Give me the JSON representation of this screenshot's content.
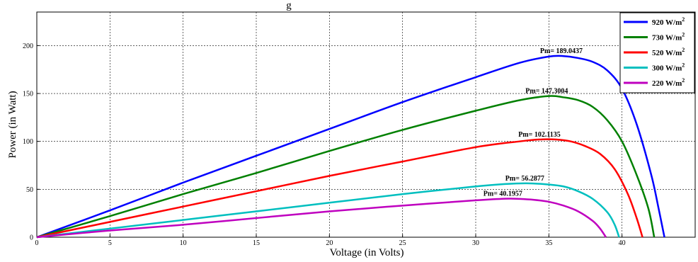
{
  "chart_data": {
    "type": "line",
    "title_fragment": "g",
    "xlabel": "Voltage (in Volts)",
    "ylabel": "Power (in Watt)",
    "xlim": [
      0,
      45
    ],
    "ylim": [
      0,
      235
    ],
    "xticks": [
      0,
      5,
      10,
      15,
      20,
      25,
      30,
      35,
      40
    ],
    "yticks": [
      0,
      50,
      100,
      150,
      200
    ],
    "grid": true,
    "grid_style": "dotted",
    "legend_position": "top-right",
    "series": [
      {
        "name": "920 W/m",
        "superscript": "2",
        "color": "#0000FF",
        "peak_label": "Pm= 189.0437",
        "points": [
          [
            0,
            0
          ],
          [
            5,
            28
          ],
          [
            10,
            57
          ],
          [
            15,
            85
          ],
          [
            20,
            113
          ],
          [
            25,
            141
          ],
          [
            30,
            167
          ],
          [
            33,
            182
          ],
          [
            35,
            188.5
          ],
          [
            36,
            189.0437
          ],
          [
            37,
            187
          ],
          [
            38,
            183
          ],
          [
            39,
            174
          ],
          [
            40,
            155
          ],
          [
            41,
            118
          ],
          [
            42,
            65
          ],
          [
            42.5,
            30
          ],
          [
            42.9,
            0
          ]
        ]
      },
      {
        "name": "730 W/m",
        "superscript": "2",
        "color": "#008000",
        "peak_label": "Pm= 147.3004",
        "points": [
          [
            0,
            0
          ],
          [
            5,
            22
          ],
          [
            10,
            45
          ],
          [
            15,
            67
          ],
          [
            20,
            90
          ],
          [
            25,
            112
          ],
          [
            30,
            132
          ],
          [
            33,
            143
          ],
          [
            35,
            147.3004
          ],
          [
            36,
            146
          ],
          [
            37,
            143
          ],
          [
            38,
            136
          ],
          [
            39,
            122
          ],
          [
            40,
            100
          ],
          [
            41,
            65
          ],
          [
            41.8,
            30
          ],
          [
            42.2,
            0
          ]
        ]
      },
      {
        "name": "520 W/m",
        "superscript": "2",
        "color": "#FF0000",
        "peak_label": "Pm= 102.1135",
        "points": [
          [
            0,
            0
          ],
          [
            5,
            16
          ],
          [
            10,
            32
          ],
          [
            15,
            48
          ],
          [
            20,
            64
          ],
          [
            25,
            79
          ],
          [
            30,
            94
          ],
          [
            33,
            100
          ],
          [
            34.5,
            102.1135
          ],
          [
            35.5,
            102
          ],
          [
            36.5,
            100
          ],
          [
            37.5,
            95
          ],
          [
            38.5,
            87
          ],
          [
            39.5,
            71
          ],
          [
            40.4,
            45
          ],
          [
            41,
            20
          ],
          [
            41.4,
            0
          ]
        ]
      },
      {
        "name": "300 W/m",
        "superscript": "2",
        "color": "#00BFBF",
        "peak_label": "Pm= 56.2877",
        "points": [
          [
            0,
            0
          ],
          [
            5,
            9
          ],
          [
            10,
            18
          ],
          [
            15,
            27
          ],
          [
            20,
            36
          ],
          [
            25,
            45
          ],
          [
            30,
            53
          ],
          [
            32,
            55.5
          ],
          [
            33.5,
            56.2877
          ],
          [
            35,
            55
          ],
          [
            36,
            53
          ],
          [
            37,
            48
          ],
          [
            38,
            40
          ],
          [
            39,
            26
          ],
          [
            39.5,
            13
          ],
          [
            39.8,
            0
          ]
        ]
      },
      {
        "name": "220 W/m",
        "superscript": "2",
        "color": "#BF00BF",
        "peak_label": "Pm= 40.1957",
        "points": [
          [
            0,
            0
          ],
          [
            5,
            7
          ],
          [
            10,
            13
          ],
          [
            15,
            20
          ],
          [
            20,
            27
          ],
          [
            25,
            33
          ],
          [
            30,
            38.5
          ],
          [
            32,
            40.1957
          ],
          [
            33,
            40
          ],
          [
            34,
            39
          ],
          [
            35,
            37
          ],
          [
            36,
            33
          ],
          [
            37,
            27
          ],
          [
            38,
            17
          ],
          [
            38.5,
            9
          ],
          [
            38.9,
            0
          ]
        ]
      }
    ]
  }
}
